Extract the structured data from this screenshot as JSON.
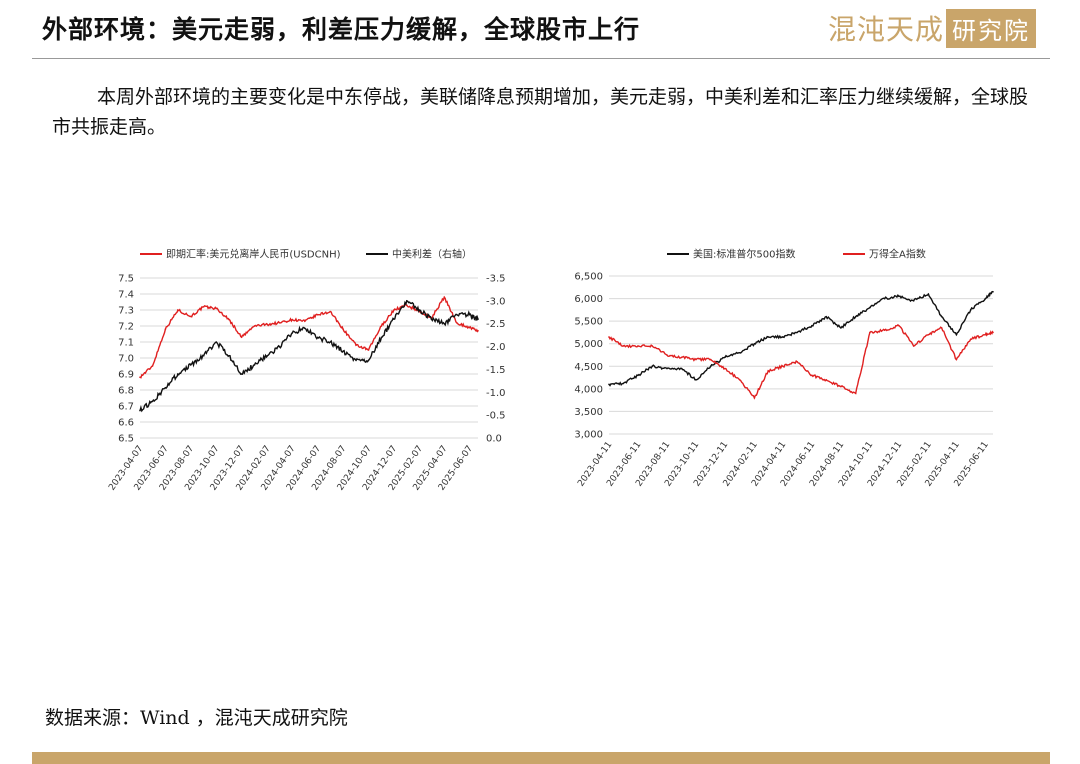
{
  "page": {
    "title": "外部环境：美元走弱，利差压力缓解，全球股市上行",
    "logo": {
      "text_a": "混沌天成",
      "text_b": "研究院"
    },
    "paragraph": "本周外部环境的主要变化是中东停战，美联储降息预期增加，美元走弱，中美利差和汇率压力继续缓解，全球股市共振走高。",
    "source": "数据来源：Wind ，混沌天成研究院",
    "colors": {
      "accent_gold": "#c9a56a",
      "red_series": "#e02020",
      "black_series": "#111111"
    }
  },
  "chart_data": [
    {
      "type": "line",
      "legend": [
        "即期汇率:美元兑离岸人民币(USDCNH)",
        "中美利差（右轴）"
      ],
      "legend_placement": "top-center",
      "grid": true,
      "x_ticks": [
        "2023-04-07",
        "2023-06-07",
        "2023-08-07",
        "2023-10-07",
        "2023-12-07",
        "2024-02-07",
        "2024-04-07",
        "2024-06-07",
        "2024-08-07",
        "2024-10-07",
        "2024-12-07",
        "2025-02-07",
        "2025-04-07",
        "2025-06-07"
      ],
      "y_left_ticks": [
        "6.5",
        "6.6",
        "6.7",
        "6.8",
        "6.9",
        "7.0",
        "7.1",
        "7.2",
        "7.3",
        "7.4",
        "7.5"
      ],
      "ylim_left": [
        6.5,
        7.5
      ],
      "y_right_ticks": [
        "0.0",
        "-0.5",
        "-1.0",
        "-1.5",
        "-2.0",
        "-2.5",
        "-3.0",
        "-3.5"
      ],
      "ylim_right": [
        0.0,
        -3.5
      ],
      "series": [
        {
          "name": "即期汇率:美元兑离岸人民币(USDCNH)",
          "color": "#e02020",
          "axis": "left",
          "x": [
            "2023-04-07",
            "2023-05-07",
            "2023-06-07",
            "2023-07-07",
            "2023-08-07",
            "2023-09-07",
            "2023-10-07",
            "2023-11-07",
            "2023-12-07",
            "2024-01-07",
            "2024-02-07",
            "2024-03-07",
            "2024-04-07",
            "2024-05-07",
            "2024-06-07",
            "2024-07-07",
            "2024-08-07",
            "2024-09-07",
            "2024-10-07",
            "2024-11-07",
            "2024-12-07",
            "2025-01-07",
            "2025-02-07",
            "2025-03-07",
            "2025-04-07",
            "2025-05-07",
            "2025-06-07",
            "2025-06-27"
          ],
          "values": [
            6.88,
            6.95,
            7.18,
            7.3,
            7.26,
            7.32,
            7.31,
            7.24,
            7.13,
            7.2,
            7.21,
            7.22,
            7.24,
            7.23,
            7.27,
            7.29,
            7.18,
            7.08,
            7.05,
            7.2,
            7.3,
            7.33,
            7.29,
            7.25,
            7.38,
            7.22,
            7.19,
            7.17
          ]
        },
        {
          "name": "中美利差（右轴）",
          "color": "#111111",
          "axis": "right",
          "x": [
            "2023-04-07",
            "2023-05-07",
            "2023-06-07",
            "2023-07-07",
            "2023-08-07",
            "2023-09-07",
            "2023-10-07",
            "2023-11-07",
            "2023-12-07",
            "2024-01-07",
            "2024-02-07",
            "2024-03-07",
            "2024-04-07",
            "2024-05-07",
            "2024-06-07",
            "2024-07-07",
            "2024-08-07",
            "2024-09-07",
            "2024-10-07",
            "2024-11-07",
            "2024-12-07",
            "2025-01-07",
            "2025-02-07",
            "2025-03-07",
            "2025-04-07",
            "2025-05-07",
            "2025-06-07",
            "2025-06-27"
          ],
          "values": [
            -0.6,
            -0.8,
            -1.1,
            -1.4,
            -1.6,
            -1.8,
            -2.1,
            -1.8,
            -1.4,
            -1.6,
            -1.8,
            -2.0,
            -2.3,
            -2.4,
            -2.2,
            -2.1,
            -1.9,
            -1.7,
            -1.7,
            -2.2,
            -2.6,
            -3.0,
            -2.8,
            -2.6,
            -2.5,
            -2.7,
            -2.7,
            -2.6
          ]
        }
      ]
    },
    {
      "type": "line",
      "legend": [
        "美国:标准普尔500指数",
        "万得全A指数"
      ],
      "legend_placement": "top-center",
      "grid": true,
      "x_ticks": [
        "2023-04-11",
        "2023-06-11",
        "2023-08-11",
        "2023-10-11",
        "2023-12-11",
        "2024-02-11",
        "2024-04-11",
        "2024-06-11",
        "2024-08-11",
        "2024-10-11",
        "2024-12-11",
        "2025-02-11",
        "2025-04-11",
        "2025-06-11"
      ],
      "y_ticks": [
        "3,000",
        "3,500",
        "4,000",
        "4,500",
        "5,000",
        "5,500",
        "6,000",
        "6,500"
      ],
      "ylim": [
        3000,
        6500
      ],
      "series": [
        {
          "name": "美国:标准普尔500指数",
          "color": "#111111",
          "x": [
            "2023-04-11",
            "2023-05-11",
            "2023-06-11",
            "2023-07-11",
            "2023-08-11",
            "2023-09-11",
            "2023-10-11",
            "2023-11-11",
            "2023-12-11",
            "2024-01-11",
            "2024-02-11",
            "2024-03-11",
            "2024-04-11",
            "2024-05-11",
            "2024-06-11",
            "2024-07-11",
            "2024-08-11",
            "2024-09-11",
            "2024-10-11",
            "2024-11-11",
            "2024-12-11",
            "2025-01-11",
            "2025-02-11",
            "2025-03-11",
            "2025-04-11",
            "2025-05-11",
            "2025-06-11",
            "2025-06-27"
          ],
          "values": [
            4100,
            4120,
            4300,
            4500,
            4450,
            4450,
            4200,
            4500,
            4700,
            4800,
            5000,
            5150,
            5150,
            5250,
            5400,
            5600,
            5350,
            5600,
            5800,
            6000,
            6050,
            5950,
            6100,
            5600,
            5200,
            5750,
            6000,
            6150
          ]
        },
        {
          "name": "万得全A指数",
          "color": "#e02020",
          "x": [
            "2023-04-11",
            "2023-05-11",
            "2023-06-11",
            "2023-07-11",
            "2023-08-11",
            "2023-09-11",
            "2023-10-11",
            "2023-11-11",
            "2023-12-11",
            "2024-01-11",
            "2024-02-11",
            "2024-03-11",
            "2024-04-11",
            "2024-05-11",
            "2024-06-11",
            "2024-07-11",
            "2024-08-11",
            "2024-09-11",
            "2024-10-11",
            "2024-11-11",
            "2024-12-11",
            "2025-01-11",
            "2025-02-11",
            "2025-03-11",
            "2025-04-11",
            "2025-05-11",
            "2025-06-11",
            "2025-06-27"
          ],
          "values": [
            5150,
            4950,
            4950,
            4950,
            4750,
            4700,
            4650,
            4650,
            4450,
            4200,
            3800,
            4400,
            4500,
            4600,
            4300,
            4200,
            4050,
            3900,
            5250,
            5300,
            5400,
            4950,
            5200,
            5350,
            4650,
            5100,
            5200,
            5250
          ]
        }
      ]
    }
  ]
}
